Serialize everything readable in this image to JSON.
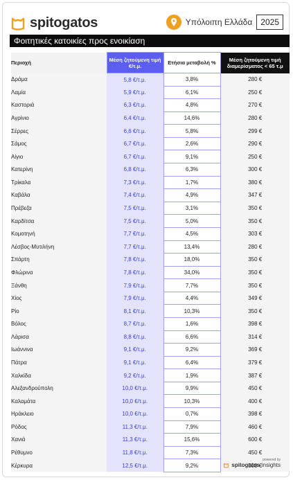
{
  "brand": {
    "name": "spitogatos",
    "accent": "#f0a020"
  },
  "header": {
    "region": "Υπόλοιπη Ελλάδα",
    "year": "2025"
  },
  "title": "Φοιτητικές κατοικίες προς ενοικίαση",
  "columns": {
    "area": "Περιοχή",
    "price": "Μέση ζητούμενη τιμή €/τ.μ.",
    "change": "Ετήσια μεταβολή %",
    "apartment": "Μέση ζητούμενη τιμή διαμερίσματος < 65 τ.μ"
  },
  "rows": [
    {
      "area": "Δράμα",
      "price": "5,8 €/τ.μ.",
      "change": "3,8%",
      "apt": "280 €"
    },
    {
      "area": "Λαμία",
      "price": "5,9 €/τ.μ.",
      "change": "6,1%",
      "apt": "250 €"
    },
    {
      "area": "Καστοριά",
      "price": "6,3 €/τ.μ.",
      "change": "4,8%",
      "apt": "270 €"
    },
    {
      "area": "Αγρίνιο",
      "price": "6,4 €/τ.μ.",
      "change": "14,6%",
      "apt": "280 €"
    },
    {
      "area": "Σέρρες",
      "price": "6,6 €/τ.μ.",
      "change": "5,8%",
      "apt": "299 €"
    },
    {
      "area": "Σάμος",
      "price": "6,7 €/τ.μ.",
      "change": "2,6%",
      "apt": "290 €"
    },
    {
      "area": "Αίγιο",
      "price": "6,7 €/τ.μ.",
      "change": "9,1%",
      "apt": "250 €"
    },
    {
      "area": "Κατερίνη",
      "price": "6,8 €/τ.μ.",
      "change": "6,3%",
      "apt": "300 €"
    },
    {
      "area": "Τρίκαλα",
      "price": "7,3 €/τ.μ.",
      "change": "1,7%",
      "apt": "380 €"
    },
    {
      "area": "Καβάλα",
      "price": "7,4 €/τ.μ.",
      "change": "4,9%",
      "apt": "347 €"
    },
    {
      "area": "Πρέβεζα",
      "price": "7,5 €/τ.μ.",
      "change": "3,1%",
      "apt": "350 €"
    },
    {
      "area": "Καρδίτσα",
      "price": "7,5 €/τ.μ.",
      "change": "5,0%",
      "apt": "350 €"
    },
    {
      "area": "Κομοτηνή",
      "price": "7,7 €/τ.μ.",
      "change": "4,5%",
      "apt": "303 €"
    },
    {
      "area": "Λέσβος-Μυτιλήνη",
      "price": "7,7 €/τ.μ.",
      "change": "13,4%",
      "apt": "280 €"
    },
    {
      "area": "Σπάρτη",
      "price": "7,8 €/τ.μ.",
      "change": "18,0%",
      "apt": "350 €"
    },
    {
      "area": "Φλώρινα",
      "price": "7,8 €/τ.μ.",
      "change": "34,0%",
      "apt": "350 €"
    },
    {
      "area": "Ξάνθη",
      "price": "7,9 €/τ.μ.",
      "change": "7,7%",
      "apt": "350 €"
    },
    {
      "area": "Χίος",
      "price": "7,9 €/τ.μ.",
      "change": "4,4%",
      "apt": "349 €"
    },
    {
      "area": "Ρίο",
      "price": "8,1 €/τ.μ.",
      "change": "10,3%",
      "apt": "350 €"
    },
    {
      "area": "Βόλος",
      "price": "8,7 €/τ.μ.",
      "change": "1,6%",
      "apt": "398 €"
    },
    {
      "area": "Λάρισα",
      "price": "8,8 €/τ.μ.",
      "change": "6,6%",
      "apt": "314 €"
    },
    {
      "area": "Ιωάννινα",
      "price": "9,1 €/τ.μ.",
      "change": "9,2%",
      "apt": "369 €"
    },
    {
      "area": "Πάτρα",
      "price": "9,1 €/τ.μ.",
      "change": "6,4%",
      "apt": "379 €"
    },
    {
      "area": "Χαλκίδα",
      "price": "9,2 €/τ.μ.",
      "change": "1,9%",
      "apt": "387 €"
    },
    {
      "area": "Αλεξανδρούπολη",
      "price": "10,0 €/τ.μ.",
      "change": "9,9%",
      "apt": "450 €"
    },
    {
      "area": "Καλαμάτα",
      "price": "10,0 €/τ.μ.",
      "change": "10,3%",
      "apt": "400 €"
    },
    {
      "area": "Ηράκλειο",
      "price": "10,0 €/τ.μ.",
      "change": "0,7%",
      "apt": "398 €"
    },
    {
      "area": "Ρόδος",
      "price": "11,3 €/τ.μ.",
      "change": "7,9%",
      "apt": "460 €"
    },
    {
      "area": "Χανιά",
      "price": "11,3 €/τ.μ.",
      "change": "15,6%",
      "apt": "600 €"
    },
    {
      "area": "Ρέθυμνο",
      "price": "11,8 €/τ.μ.",
      "change": "7,3%",
      "apt": "450 €"
    },
    {
      "area": "Κέρκυρα",
      "price": "12,5 €/τ.μ.",
      "change": "9,2%",
      "apt": "500 €"
    }
  ],
  "footer": {
    "powered": "powered by",
    "brand": "spitogatos",
    "suffix": "insights"
  }
}
